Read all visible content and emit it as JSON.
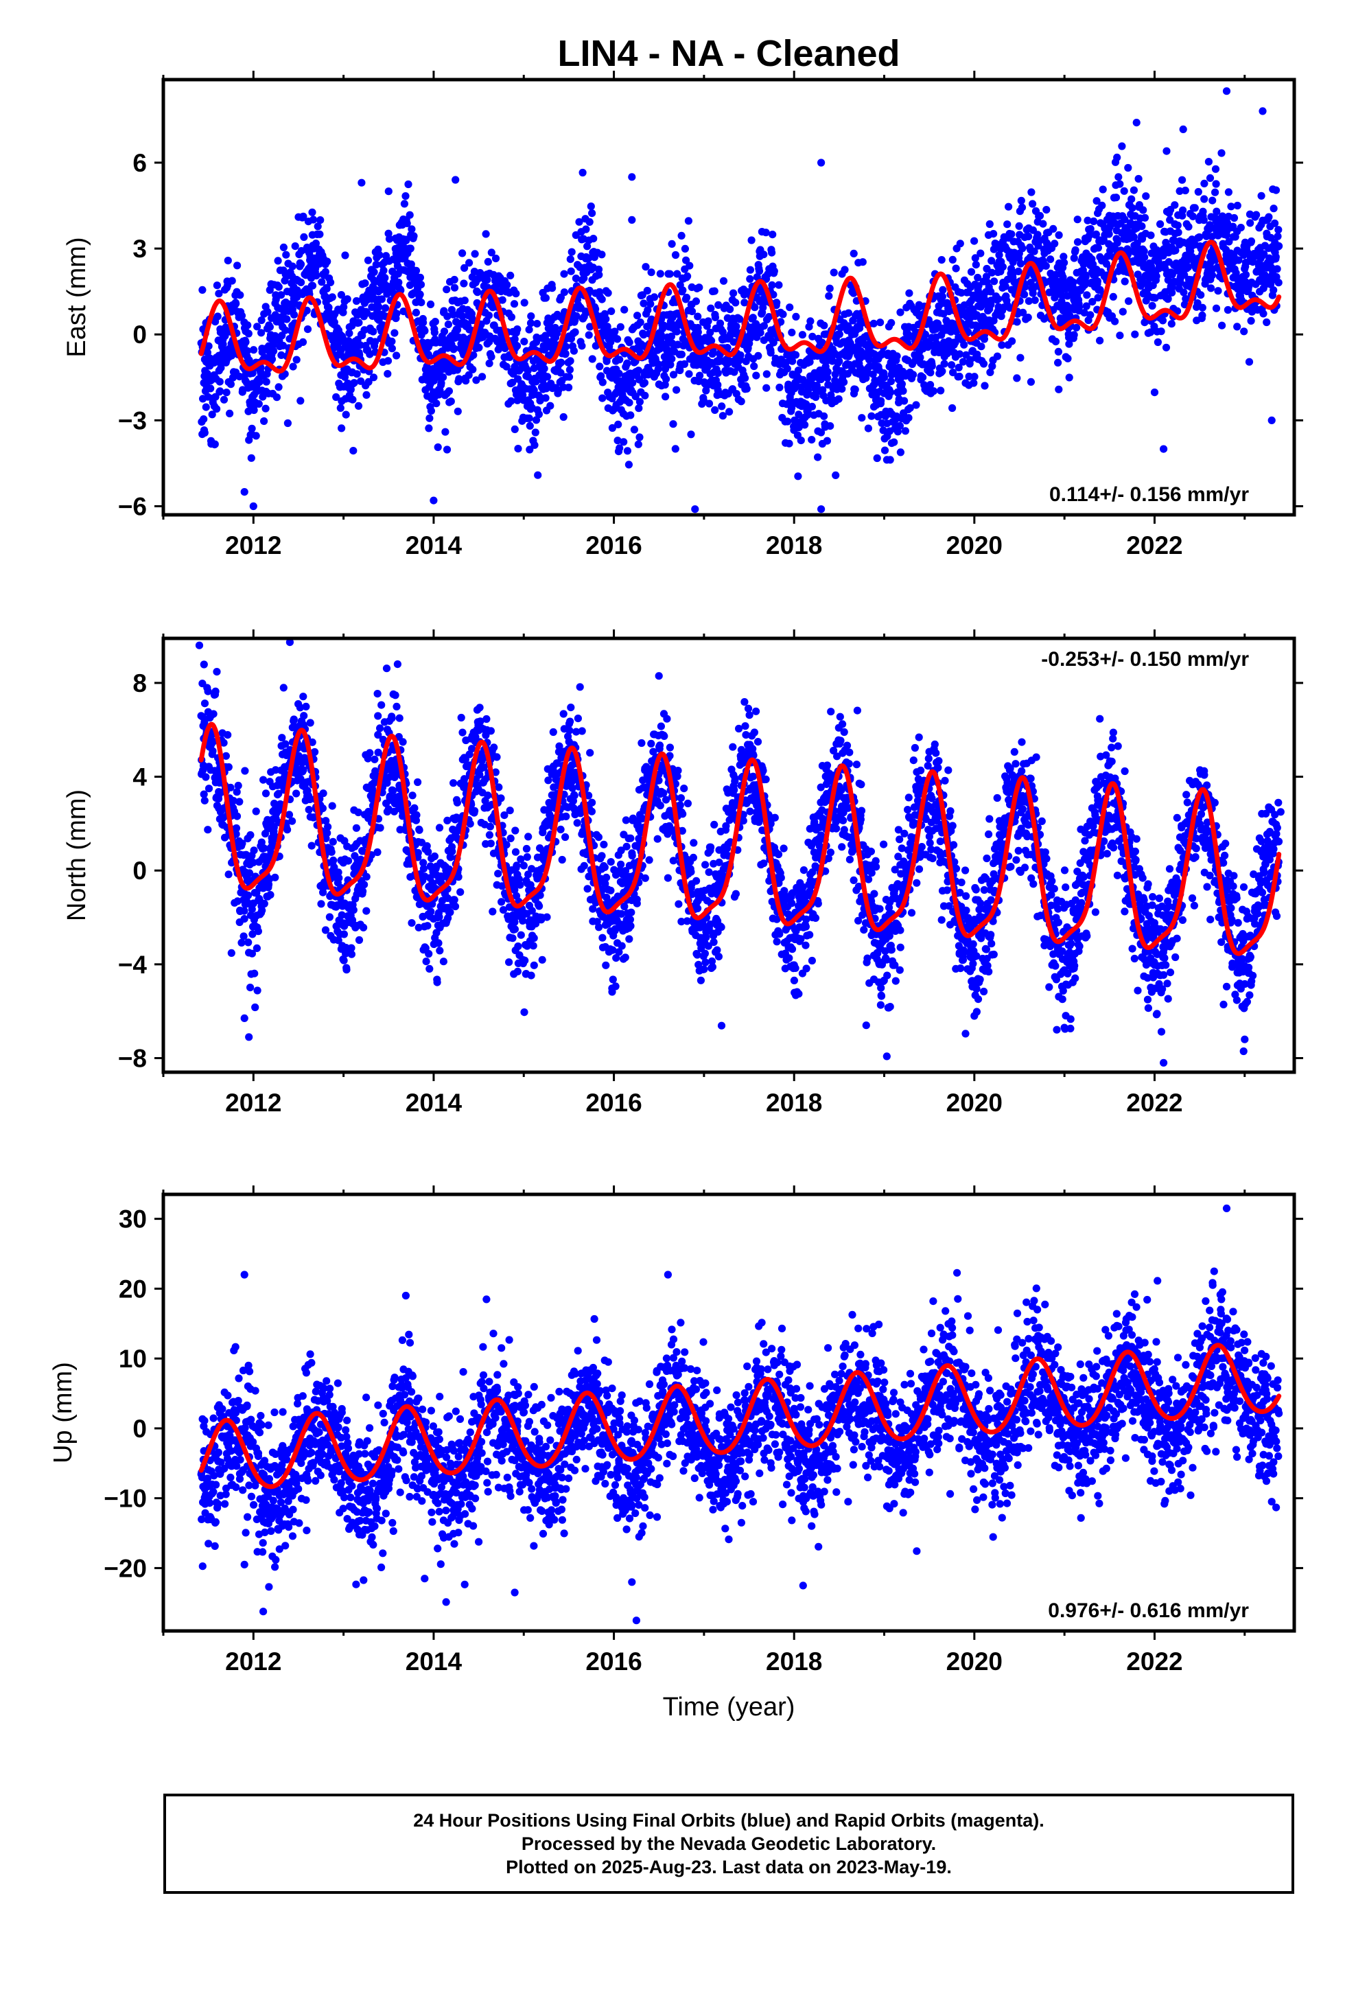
{
  "title": "LIN4  - NA - Cleaned",
  "colors": {
    "final_orbits": "#0000ff",
    "fit_line": "#ff0000",
    "frame": "#000000",
    "background": "#ffffff"
  },
  "footer": {
    "line1": "24 Hour Positions Using Final Orbits (blue) and Rapid Orbits (magenta).",
    "line2": "Processed by the Nevada Geodetic Laboratory.",
    "line3": "Plotted on 2025-Aug-23. Last data on 2023-May-19."
  },
  "chart_data": [
    {
      "type": "scatter",
      "panel": "east",
      "ylabel": "East (mm)",
      "xlabel": "",
      "xlim": [
        2011.0,
        2023.55
      ],
      "ylim": [
        -6.3,
        8.9
      ],
      "xticks": [
        2012,
        2014,
        2016,
        2018,
        2020,
        2022
      ],
      "yticks": [
        -6,
        -3,
        0,
        3,
        6
      ],
      "ytick_labels": [
        "−6",
        "−3",
        "0",
        "3",
        "6"
      ],
      "rate_annotation": "0.114+/- 0.156 mm/yr",
      "annotation_position": "bottom-right",
      "data_start": 2011.42,
      "data_end": 2023.38,
      "series": [
        {
          "name": "",
          "marker": "dots",
          "samples": [
            [
              2011.5,
              -1.5
            ],
            [
              2011.8,
              0.5
            ],
            [
              2012.0,
              -2.0
            ],
            [
              2012.3,
              0.5
            ],
            [
              2012.7,
              2.5
            ],
            [
              2013.0,
              -0.8
            ],
            [
              2013.4,
              1.0
            ],
            [
              2013.7,
              2.5
            ],
            [
              2014.0,
              -1.2
            ],
            [
              2014.4,
              0.2
            ],
            [
              2014.7,
              1.2
            ],
            [
              2015.0,
              -1.8
            ],
            [
              2015.4,
              -0.5
            ],
            [
              2015.7,
              2.0
            ],
            [
              2016.1,
              -1.8
            ],
            [
              2016.5,
              -0.2
            ],
            [
              2016.8,
              0.5
            ],
            [
              2017.0,
              -1.0
            ],
            [
              2017.4,
              -0.3
            ],
            [
              2017.7,
              1.2
            ],
            [
              2018.0,
              -2.5
            ],
            [
              2018.4,
              -0.8
            ],
            [
              2018.7,
              -0.2
            ],
            [
              2019.0,
              -1.8
            ],
            [
              2019.4,
              -0.8
            ],
            [
              2019.7,
              0.3
            ],
            [
              2020.0,
              0.5
            ],
            [
              2020.4,
              2.0
            ],
            [
              2020.7,
              2.8
            ],
            [
              2021.0,
              1.2
            ],
            [
              2021.4,
              2.5
            ],
            [
              2021.7,
              3.5
            ],
            [
              2022.0,
              1.8
            ],
            [
              2022.4,
              2.8
            ],
            [
              2022.7,
              3.5
            ],
            [
              2023.0,
              2.0
            ],
            [
              2023.3,
              2.5
            ]
          ],
          "outliers": [
            [
              2011.9,
              -5.5
            ],
            [
              2012.0,
              -6.0
            ],
            [
              2012.5,
              4.1
            ],
            [
              2013.2,
              5.3
            ],
            [
              2013.5,
              5.0
            ],
            [
              2014.0,
              -5.8
            ],
            [
              2016.2,
              5.5
            ],
            [
              2016.2,
              4.0
            ],
            [
              2016.9,
              -6.1
            ],
            [
              2018.3,
              6.0
            ],
            [
              2018.3,
              -6.1
            ],
            [
              2021.8,
              7.4
            ],
            [
              2022.1,
              -4.0
            ],
            [
              2022.8,
              8.5
            ],
            [
              2023.2,
              7.8
            ],
            [
              2023.3,
              -3.0
            ]
          ]
        },
        {
          "name": "",
          "marker": "line",
          "trend": {
            "x0": 2011.42,
            "y0": -0.5,
            "rate": 0.114,
            "ramp": {
              "start": 2019.5,
              "end": 2023.4,
              "amount": 1.0
            }
          },
          "seasonal": {
            "annual_amp": 1.1,
            "annual_peak": 0.63,
            "semiannual_amp": 0.55,
            "semiannual_peak": 0.62
          }
        }
      ]
    },
    {
      "type": "scatter",
      "panel": "north",
      "ylabel": "North (mm)",
      "xlabel": "",
      "xlim": [
        2011.0,
        2023.55
      ],
      "ylim": [
        -8.6,
        9.9
      ],
      "xticks": [
        2012,
        2014,
        2016,
        2018,
        2020,
        2022
      ],
      "yticks": [
        -8,
        -4,
        0,
        4,
        8
      ],
      "ytick_labels": [
        "−8",
        "−4",
        "0",
        "4",
        "8"
      ],
      "rate_annotation": "-0.253+/- 0.150 mm/yr",
      "annotation_position": "top-right",
      "data_start": 2011.42,
      "data_end": 2023.38,
      "series": [
        {
          "name": "",
          "marker": "dots",
          "samples": [
            [
              2011.5,
              5.5
            ],
            [
              2012.0,
              -1.2
            ],
            [
              2012.5,
              5.2
            ],
            [
              2013.0,
              -1.5
            ],
            [
              2013.5,
              4.8
            ],
            [
              2014.0,
              -1.8
            ],
            [
              2014.5,
              4.6
            ],
            [
              2015.0,
              -2.0
            ],
            [
              2015.5,
              4.4
            ],
            [
              2016.0,
              -2.2
            ],
            [
              2016.5,
              4.2
            ],
            [
              2017.0,
              -2.5
            ],
            [
              2017.5,
              4.0
            ],
            [
              2018.0,
              -2.7
            ],
            [
              2018.5,
              3.7
            ],
            [
              2019.0,
              -3.0
            ],
            [
              2019.5,
              3.3
            ],
            [
              2020.0,
              -3.3
            ],
            [
              2020.5,
              3.2
            ],
            [
              2021.0,
              -3.5
            ],
            [
              2021.5,
              3.0
            ],
            [
              2022.0,
              -3.8
            ],
            [
              2022.5,
              2.6
            ],
            [
              2023.0,
              -3.9
            ],
            [
              2023.3,
              0.8
            ]
          ],
          "outliers": [
            [
              2011.4,
              9.6
            ],
            [
              2011.9,
              -6.3
            ],
            [
              2011.95,
              -7.1
            ],
            [
              2013.6,
              8.8
            ],
            [
              2016.5,
              8.3
            ],
            [
              2018.8,
              -6.6
            ],
            [
              2020.0,
              -6.2
            ],
            [
              2021.0,
              -6.7
            ],
            [
              2022.1,
              -8.2
            ],
            [
              2023.0,
              -7.2
            ],
            [
              2023.4,
              2.5
            ]
          ]
        },
        {
          "name": "",
          "marker": "line",
          "trend": {
            "x0": 2011.42,
            "y0": 2.1,
            "rate": -0.253
          },
          "seasonal": {
            "annual_amp": 3.3,
            "annual_peak": 0.52,
            "semiannual_amp": 0.9,
            "semiannual_peak": 0.55
          }
        }
      ]
    },
    {
      "type": "scatter",
      "panel": "up",
      "ylabel": "Up (mm)",
      "xlabel": "Time (year)",
      "xlim": [
        2011.0,
        2023.55
      ],
      "ylim": [
        -29.0,
        33.5
      ],
      "xticks": [
        2012,
        2014,
        2016,
        2018,
        2020,
        2022
      ],
      "yticks": [
        -20,
        -10,
        0,
        10,
        20,
        30
      ],
      "ytick_labels": [
        "−20",
        "−10",
        "0",
        "10",
        "20",
        "30"
      ],
      "rate_annotation": "0.976+/- 0.616 mm/yr",
      "annotation_position": "bottom-right",
      "data_start": 2011.42,
      "data_end": 2023.38,
      "series": [
        {
          "name": "",
          "marker": "dots",
          "samples": [
            [
              2011.5,
              -8.0
            ],
            [
              2011.8,
              -1.0
            ],
            [
              2012.2,
              -10.0
            ],
            [
              2012.7,
              0.0
            ],
            [
              2013.3,
              -9.5
            ],
            [
              2013.7,
              1.0
            ],
            [
              2014.2,
              -8.5
            ],
            [
              2014.7,
              2.0
            ],
            [
              2015.2,
              -7.5
            ],
            [
              2015.7,
              3.0
            ],
            [
              2016.2,
              -7.0
            ],
            [
              2016.7,
              4.0
            ],
            [
              2017.2,
              -6.0
            ],
            [
              2017.7,
              4.5
            ],
            [
              2018.2,
              -5.0
            ],
            [
              2018.7,
              5.5
            ],
            [
              2019.2,
              -4.0
            ],
            [
              2019.7,
              6.5
            ],
            [
              2020.2,
              -3.0
            ],
            [
              2020.7,
              7.5
            ],
            [
              2021.2,
              -2.0
            ],
            [
              2021.7,
              8.5
            ],
            [
              2022.2,
              -1.0
            ],
            [
              2022.7,
              9.5
            ],
            [
              2023.3,
              0.5
            ]
          ],
          "outliers": [
            [
              2011.5,
              -16.5
            ],
            [
              2011.9,
              22.0
            ],
            [
              2011.9,
              -19.5
            ],
            [
              2013.9,
              -21.5
            ],
            [
              2014.9,
              -23.5
            ],
            [
              2016.2,
              -22.0
            ],
            [
              2016.25,
              -27.5
            ],
            [
              2016.6,
              22.0
            ],
            [
              2018.1,
              -22.5
            ],
            [
              2022.8,
              31.5
            ],
            [
              2023.3,
              -10.5
            ]
          ]
        },
        {
          "name": "",
          "marker": "line",
          "trend": {
            "x0": 2011.42,
            "y0": -4.6,
            "rate": 0.976
          },
          "seasonal": {
            "annual_amp": 5.0,
            "annual_peak": 0.7,
            "semiannual_amp": 0.5,
            "semiannual_peak": 0.7
          }
        }
      ]
    }
  ]
}
